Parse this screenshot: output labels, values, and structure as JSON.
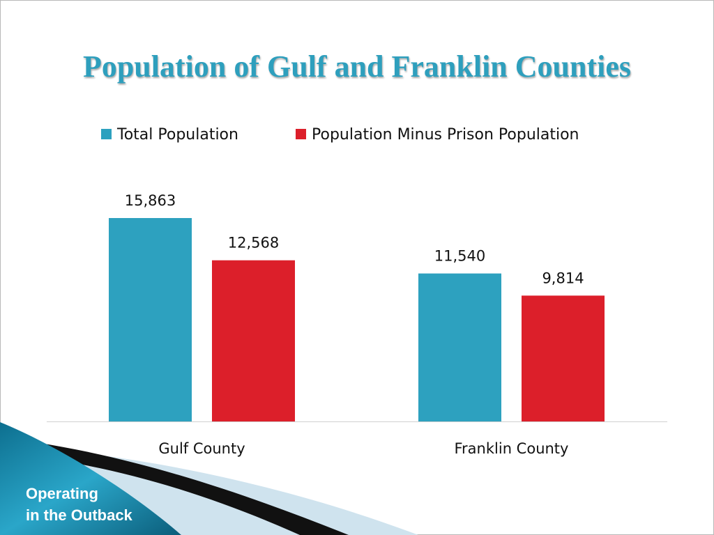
{
  "slide": {
    "footer_line1": "Operating",
    "footer_line2": "in the Outback"
  },
  "colors": {
    "total": "#2da1bf",
    "minus_prison": "#dc1f2a",
    "title": "#2e9fbd"
  },
  "chart_data": {
    "type": "bar",
    "title": "Population of Gulf and Franklin Counties",
    "categories": [
      "Gulf County",
      "Franklin County"
    ],
    "series": [
      {
        "name": "Total Population",
        "values": [
          15863,
          11540
        ],
        "labels": [
          "15,863",
          "11,540"
        ]
      },
      {
        "name": "Population Minus Prison Population",
        "values": [
          12568,
          9814
        ],
        "labels": [
          "12,568",
          "9,814"
        ]
      }
    ],
    "xlabel": "",
    "ylabel": "",
    "ylim": [
      0,
      16000
    ],
    "grid": false,
    "legend": "top"
  }
}
